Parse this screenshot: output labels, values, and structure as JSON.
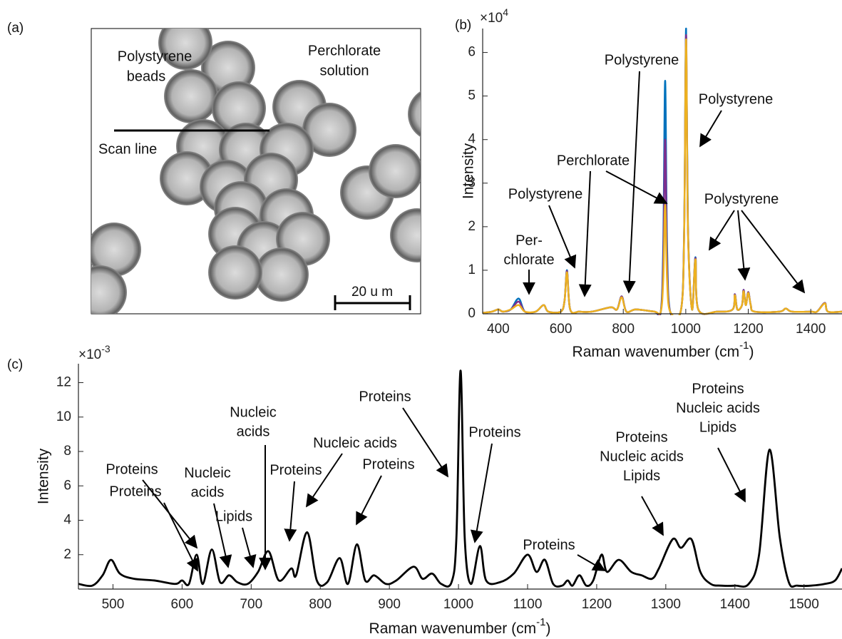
{
  "image_panel": {
    "label": "(a)",
    "annotations": [
      [
        "Polystyrene",
        "beads"
      ],
      [
        "Perchlorate",
        "solution"
      ],
      [
        "Scan line"
      ]
    ],
    "scale_bar": "20 u m"
  },
  "chart_data": [
    {
      "type": "line",
      "label": "(b)",
      "ylabel": "Intensity",
      "xlabel": [
        "Raman wavenumber (cm",
        "-1",
        ")"
      ],
      "y_multiplier": [
        "×10",
        "4"
      ],
      "xlim": [
        350,
        1500
      ],
      "xticks": [
        400,
        600,
        800,
        1000,
        1200,
        1400
      ],
      "ylim": [
        0,
        6.55
      ],
      "yticks": [
        0,
        1,
        2,
        3,
        4,
        5,
        6
      ],
      "x": [
        350,
        380,
        400,
        415,
        440,
        465,
        485,
        520,
        545,
        560,
        600,
        612,
        620,
        630,
        660,
        700,
        760,
        780,
        795,
        810,
        840,
        900,
        920,
        928,
        934,
        940,
        950,
        985,
        995,
        1001,
        1007,
        1020,
        1031,
        1040,
        1100,
        1150,
        1157,
        1165,
        1180,
        1185,
        1192,
        1200,
        1208,
        1220,
        1300,
        1320,
        1340,
        1400,
        1420,
        1445,
        1455,
        1500
      ],
      "series": [
        {
          "color": "#0072bd",
          "values": [
            0.02,
            0.05,
            0.1,
            0.05,
            0.1,
            0.35,
            0.05,
            0.05,
            0.2,
            0.05,
            0.05,
            0.3,
            1.0,
            0.1,
            0.05,
            0.05,
            0.15,
            0.1,
            0.4,
            0.05,
            0.1,
            0.05,
            0.05,
            1.6,
            5.35,
            1.6,
            0.05,
            0.1,
            2.0,
            6.55,
            2.0,
            0.1,
            1.3,
            0.1,
            0.05,
            0.1,
            0.45,
            0.1,
            0.2,
            0.55,
            0.2,
            0.5,
            0.2,
            0.05,
            0.05,
            0.12,
            0.05,
            0.05,
            0.05,
            0.25,
            0.05,
            0.05
          ]
        },
        {
          "color": "#7e2f8e",
          "values": [
            0.02,
            0.05,
            0.1,
            0.05,
            0.1,
            0.28,
            0.05,
            0.05,
            0.2,
            0.05,
            0.05,
            0.3,
            0.98,
            0.1,
            0.05,
            0.05,
            0.15,
            0.1,
            0.4,
            0.05,
            0.1,
            0.05,
            0.05,
            1.2,
            4.0,
            1.2,
            0.05,
            0.1,
            1.95,
            6.4,
            1.95,
            0.1,
            1.28,
            0.1,
            0.05,
            0.1,
            0.45,
            0.1,
            0.2,
            0.55,
            0.2,
            0.5,
            0.2,
            0.05,
            0.05,
            0.12,
            0.05,
            0.05,
            0.05,
            0.25,
            0.05,
            0.05
          ]
        },
        {
          "color": "#edb120",
          "values": [
            0.02,
            0.05,
            0.1,
            0.05,
            0.1,
            0.2,
            0.05,
            0.05,
            0.2,
            0.05,
            0.05,
            0.3,
            0.95,
            0.1,
            0.05,
            0.05,
            0.15,
            0.1,
            0.38,
            0.05,
            0.1,
            0.05,
            0.05,
            0.8,
            2.5,
            0.8,
            0.05,
            0.1,
            1.9,
            6.3,
            1.9,
            0.1,
            1.25,
            0.1,
            0.05,
            0.1,
            0.43,
            0.1,
            0.2,
            0.52,
            0.2,
            0.48,
            0.2,
            0.05,
            0.05,
            0.12,
            0.05,
            0.05,
            0.05,
            0.24,
            0.05,
            0.05
          ]
        }
      ],
      "annotations": [
        [
          "Polystyrene"
        ],
        [
          "Polystyrene"
        ],
        [
          "Perchlorate"
        ],
        [
          "Polystyrene"
        ],
        [
          "Per-",
          "chlorate"
        ],
        [
          "Polystyrene"
        ]
      ]
    },
    {
      "type": "line",
      "label": "(c)",
      "ylabel": "Intensity",
      "xlabel": [
        "Raman wavenumber (cm",
        "-1",
        ")"
      ],
      "y_multiplier": [
        "×10",
        "-3"
      ],
      "xlim": [
        450,
        1555
      ],
      "xticks": [
        500,
        600,
        700,
        800,
        900,
        1000,
        1100,
        1200,
        1300,
        1400,
        1500
      ],
      "ylim": [
        0,
        13.1
      ],
      "yticks": [
        2,
        4,
        6,
        8,
        10,
        12
      ],
      "x": [
        450,
        470,
        485,
        497,
        510,
        530,
        560,
        590,
        600,
        610,
        621,
        630,
        643,
        655,
        668,
        680,
        695,
        710,
        725,
        740,
        758,
        765,
        781,
        795,
        810,
        828,
        840,
        853,
        865,
        878,
        895,
        910,
        935,
        948,
        962,
        975,
        990,
        997,
        1003,
        1009,
        1018,
        1031,
        1040,
        1060,
        1080,
        1100,
        1113,
        1125,
        1137,
        1150,
        1158,
        1165,
        1175,
        1185,
        1195,
        1207,
        1215,
        1232,
        1250,
        1265,
        1280,
        1290,
        1310,
        1322,
        1337,
        1350,
        1365,
        1380,
        1400,
        1420,
        1435,
        1450,
        1465,
        1478,
        1490,
        1510,
        1530,
        1545,
        1555
      ],
      "series": [
        {
          "color": "#000000",
          "values": [
            0.3,
            0.2,
            0.8,
            1.7,
            0.9,
            0.6,
            0.5,
            0.3,
            0.5,
            0.3,
            2.0,
            0.3,
            2.3,
            0.4,
            0.8,
            0.4,
            0.3,
            1.0,
            2.2,
            0.5,
            1.2,
            0.8,
            3.3,
            0.5,
            0.4,
            1.8,
            0.3,
            2.6,
            0.5,
            0.8,
            0.3,
            0.5,
            1.3,
            0.6,
            0.9,
            0.3,
            0.4,
            3.0,
            12.7,
            3.0,
            0.3,
            2.5,
            0.5,
            0.4,
            0.9,
            2.0,
            1.0,
            1.7,
            0.3,
            0.2,
            0.5,
            0.2,
            0.8,
            0.2,
            0.5,
            2.0,
            1.0,
            1.7,
            1.0,
            0.8,
            0.6,
            1.2,
            2.9,
            2.4,
            2.9,
            1.0,
            0.3,
            0.2,
            0.2,
            0.3,
            2.0,
            8.1,
            3.0,
            0.4,
            0.2,
            0.2,
            0.3,
            0.5,
            1.2
          ]
        }
      ],
      "annotations": [
        [
          "Proteins"
        ],
        [
          "Nucleic",
          "acids"
        ],
        [
          "Nucleic acids"
        ],
        [
          "Proteins"
        ],
        [
          "Proteins"
        ],
        [
          "Proteins"
        ],
        [
          "Proteins",
          "Nucleic acids",
          "Lipids"
        ],
        [
          "Proteins",
          "Nucleic acids",
          "Lipids"
        ],
        [
          "Proteins"
        ],
        [
          "Proteins"
        ],
        [
          "Proteins"
        ],
        [
          "Nucleic",
          "acids"
        ],
        [
          "Lipids"
        ]
      ]
    }
  ]
}
